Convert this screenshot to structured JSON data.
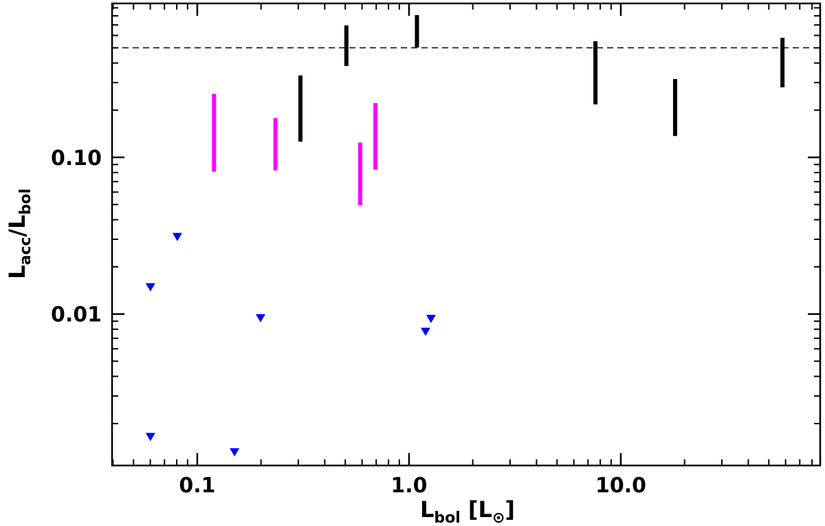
{
  "chart_data": {
    "type": "range",
    "xlabel_parts": [
      "L",
      "bol",
      " [L",
      "⊙",
      "]"
    ],
    "ylabel_parts": [
      "L",
      "acc",
      "/L",
      "bol"
    ],
    "xscale": "log",
    "yscale": "log",
    "xlim": [
      0.0396,
      87.4
    ],
    "ylim": [
      0.00108,
      0.96
    ],
    "xticks": [
      {
        "value": 0.1,
        "label": "0.1"
      },
      {
        "value": 1,
        "label": "1.0"
      },
      {
        "value": 10,
        "label": "10.0"
      }
    ],
    "yticks": [
      0.01,
      {
        "value": 0.1,
        "label": "0.10"
      }
    ],
    "xminorticks": [
      0.04,
      0.05,
      0.06,
      0.07,
      0.08,
      0.09,
      0.2,
      0.3,
      0.4,
      0.5,
      0.6,
      0.7,
      0.8,
      0.9,
      2,
      3,
      4,
      5,
      6,
      7,
      8,
      9,
      20,
      30,
      40,
      50,
      60,
      70,
      80
    ],
    "yminorticks": [
      0.002,
      0.003,
      0.004,
      0.005,
      0.006,
      0.007,
      0.008,
      0.009,
      0.02,
      0.03,
      0.04,
      0.05,
      0.06,
      0.07,
      0.08,
      0.09,
      0.2,
      0.3,
      0.4,
      0.5,
      0.6,
      0.7,
      0.8,
      0.9
    ],
    "hline": {
      "y": 0.5,
      "color": "#000000",
      "style": "dashed"
    },
    "series": [
      {
        "kind": "range",
        "color": "#000000",
        "x": [
          0.307,
          0.506,
          1.09,
          7.59,
          18.05,
          58.0
        ],
        "low": [
          0.126,
          0.383,
          0.503,
          0.218,
          0.137,
          0.28
        ],
        "high": [
          0.333,
          0.695,
          0.809,
          0.551,
          0.316,
          0.579
        ]
      },
      {
        "kind": "range",
        "color": "#ff00ff",
        "x": [
          0.12,
          0.234,
          0.588,
          0.694
        ],
        "low": [
          0.081,
          0.0826,
          0.0493,
          0.0834
        ],
        "high": [
          0.254,
          0.178,
          0.124,
          0.222
        ]
      },
      {
        "kind": "upper_limit",
        "marker": "triangle-down",
        "color": "#0000ff",
        "x": [
          0.0601,
          0.0601,
          0.0805,
          0.15,
          0.199,
          1.197,
          1.27
        ],
        "y": [
          0.0148,
          0.00164,
          0.031,
          0.00131,
          0.0094,
          0.0077,
          0.0093
        ]
      }
    ]
  }
}
